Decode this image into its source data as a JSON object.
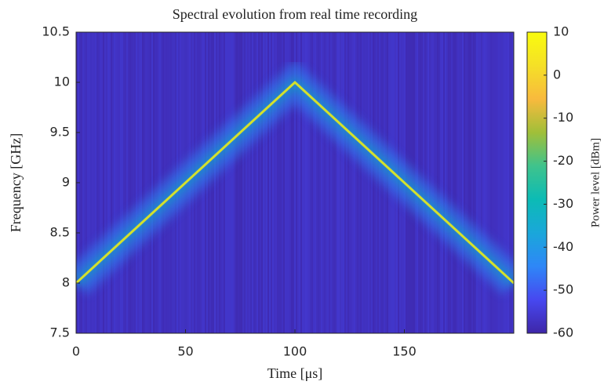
{
  "chart_data": {
    "type": "spectrogram",
    "title": "Spectral evolution from real time recording",
    "xlabel": "Time [μs]",
    "ylabel": "Frequency [GHz]",
    "xlim": [
      0,
      200
    ],
    "xticks": [
      0,
      50,
      100,
      150
    ],
    "ylim": [
      7.5,
      10.5
    ],
    "yticks": [
      7.5,
      8,
      8.5,
      9,
      9.5,
      10,
      10.5
    ],
    "x": [
      0,
      100,
      200
    ],
    "values": [
      8,
      10,
      8
    ],
    "color": "#d4e12c",
    "colorbar": {
      "label": "Power level [dBm]",
      "lim": [
        -60,
        10
      ],
      "ticks": [
        -60,
        -50,
        -40,
        -30,
        -20,
        -10,
        0,
        10
      ],
      "colormap": [
        "#3e26a8",
        "#4748f0",
        "#2e87f7",
        "#1aa7da",
        "#0cbbb5",
        "#3fc38c",
        "#a0bf39",
        "#f8ba3d",
        "#f5e027",
        "#f9fb0e"
      ]
    }
  }
}
